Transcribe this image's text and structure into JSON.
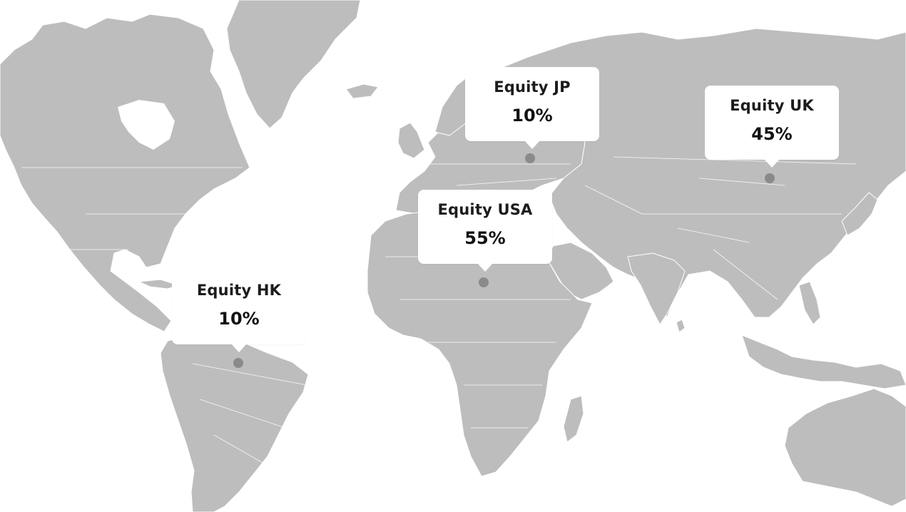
{
  "map": {
    "land_color": "#bdbdbd",
    "border_color": "#ffffff",
    "marker_color": "#8a8a8a"
  },
  "callouts": [
    {
      "label": "Equity JP",
      "value": "10%"
    },
    {
      "label": "Equity UK",
      "value": "45%"
    },
    {
      "label": "Equity USA",
      "value": "55%"
    },
    {
      "label": "Equity HK",
      "value": "10%"
    }
  ]
}
